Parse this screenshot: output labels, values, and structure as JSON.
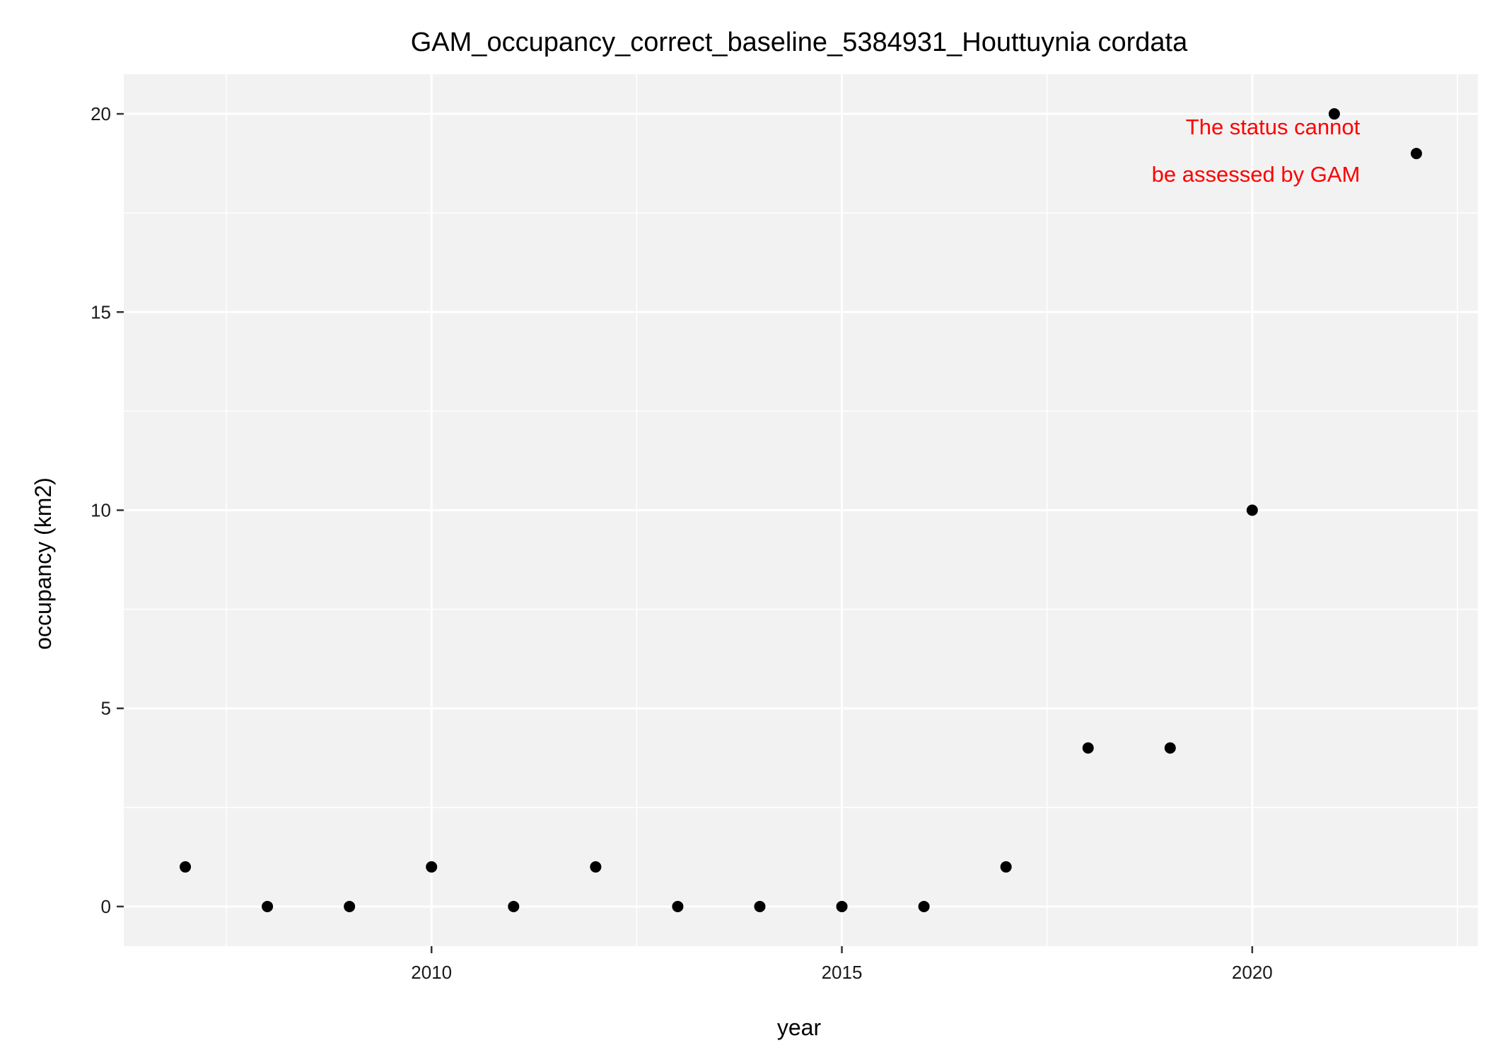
{
  "chart_data": {
    "type": "scatter",
    "title": "GAM_occupancy_correct_baseline_5384931_Houttuynia cordata",
    "xlabel": "year",
    "ylabel": "occupancy (km2)",
    "xlim": [
      2006.25,
      2022.75
    ],
    "ylim": [
      -1,
      21
    ],
    "x_ticks": [
      2010,
      2015,
      2020
    ],
    "y_ticks": [
      0,
      5,
      10,
      15,
      20
    ],
    "x_minor": [
      2007.5,
      2012.5,
      2017.5,
      2022.5
    ],
    "y_minor": [
      2.5,
      7.5,
      12.5,
      17.5
    ],
    "grid": true,
    "legend": "none",
    "points": [
      {
        "x": 2007,
        "y": 1
      },
      {
        "x": 2008,
        "y": 0
      },
      {
        "x": 2009,
        "y": 0
      },
      {
        "x": 2010,
        "y": 1
      },
      {
        "x": 2011,
        "y": 0
      },
      {
        "x": 2012,
        "y": 1
      },
      {
        "x": 2013,
        "y": 0
      },
      {
        "x": 2014,
        "y": 0
      },
      {
        "x": 2015,
        "y": 0
      },
      {
        "x": 2016,
        "y": 0
      },
      {
        "x": 2017,
        "y": 1
      },
      {
        "x": 2018,
        "y": 4
      },
      {
        "x": 2019,
        "y": 4
      },
      {
        "x": 2020,
        "y": 10
      },
      {
        "x": 2021,
        "y": 20
      },
      {
        "x": 2022,
        "y": 19
      }
    ],
    "annotation": {
      "lines": [
        "The status cannot",
        "be assessed by GAM"
      ],
      "color": "#ff0000"
    },
    "colors": {
      "panel": "#f2f2f2",
      "grid": "#ffffff",
      "point": "#000000"
    }
  }
}
